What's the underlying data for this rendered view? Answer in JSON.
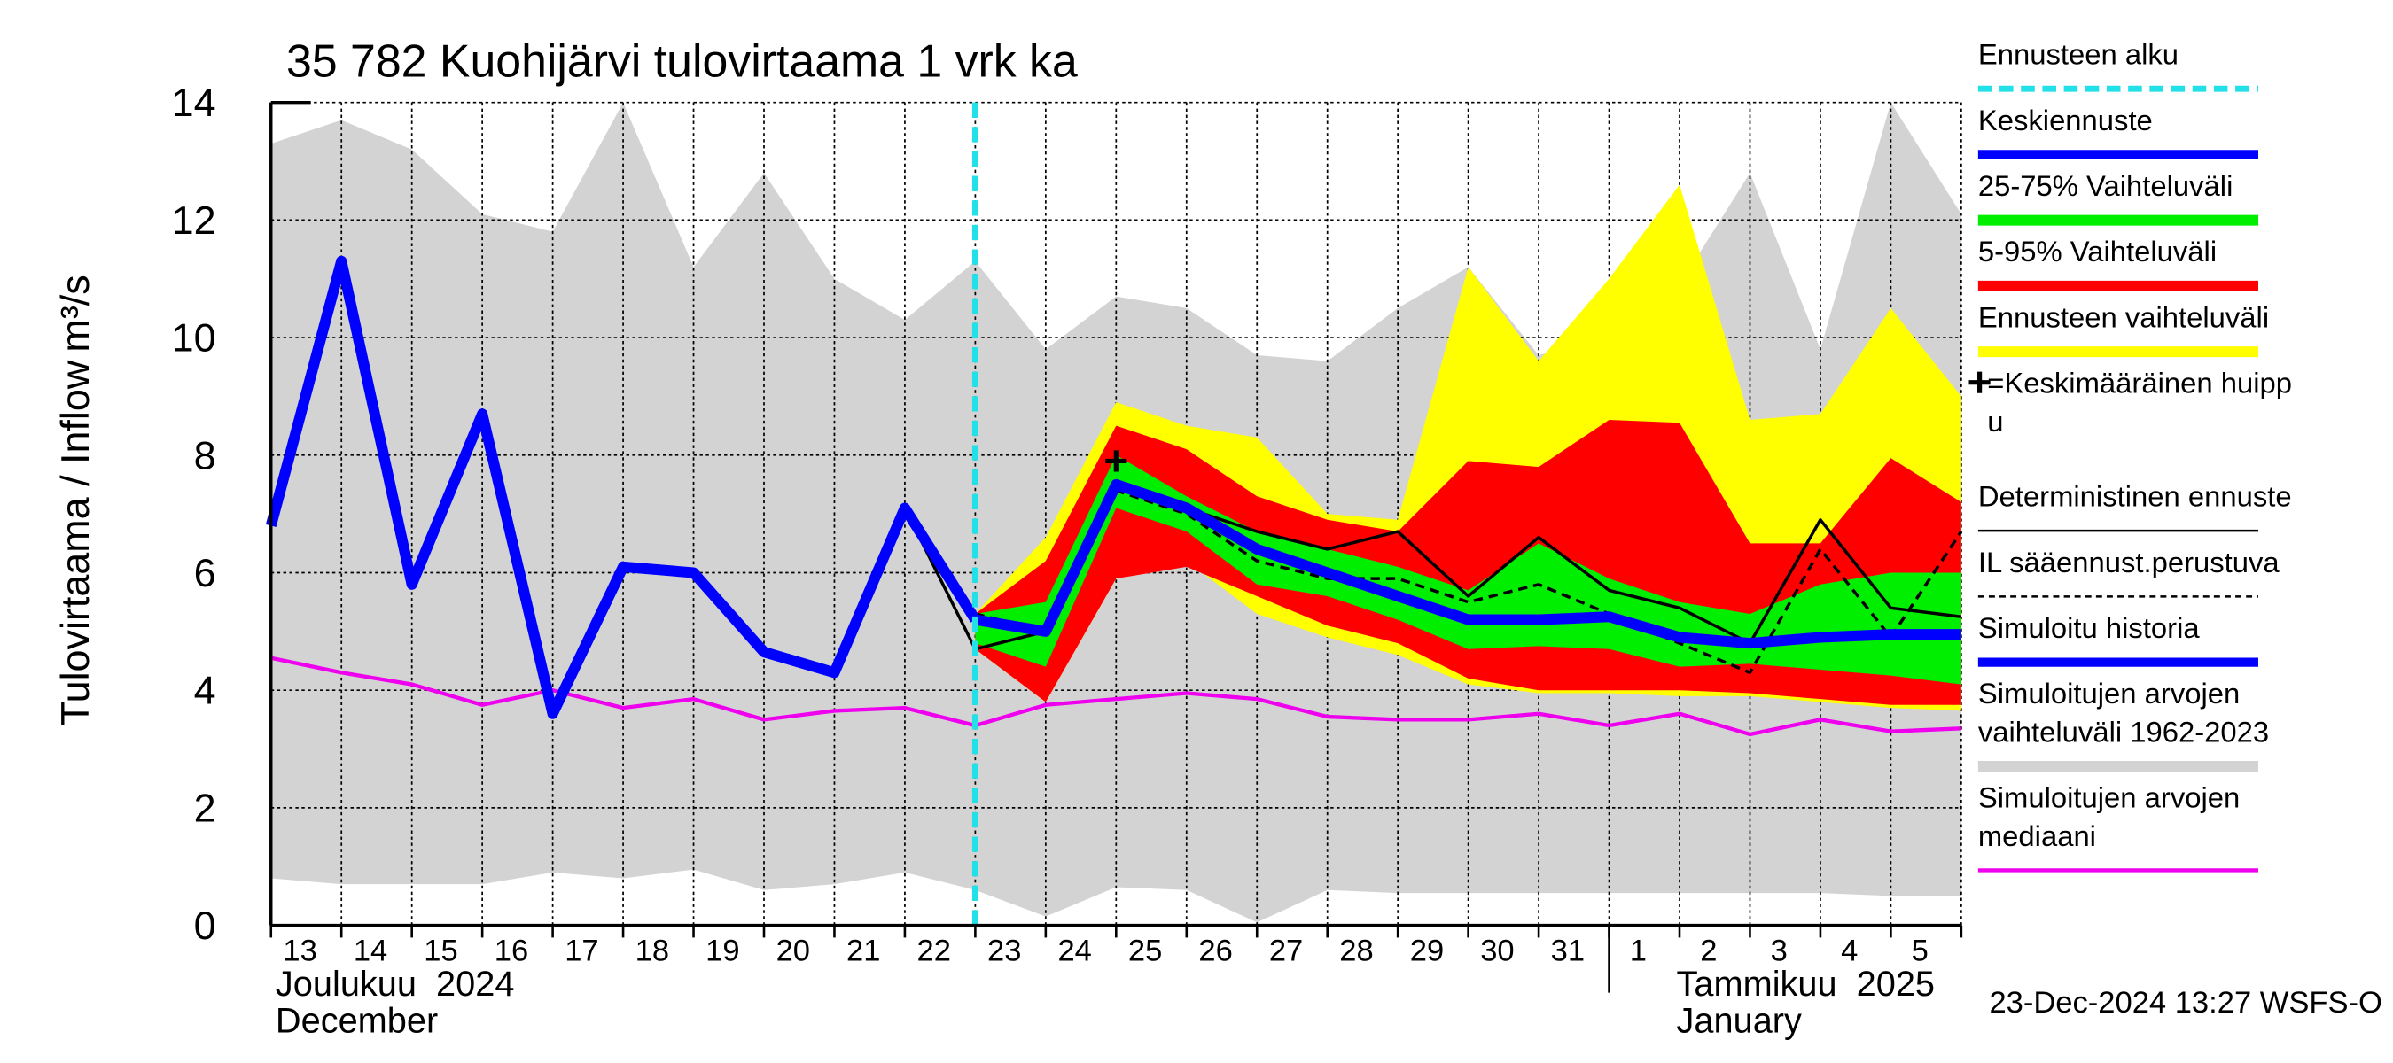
{
  "chart_data": {
    "type": "line",
    "title": "35 782 Kuohijärvi tulovirtaama 1 vrk ka",
    "y_label": "Tulovirtaama / Inflow",
    "y_unit": "m³/s",
    "categories": [
      "13",
      "14",
      "15",
      "16",
      "17",
      "18",
      "19",
      "20",
      "21",
      "22",
      "23",
      "24",
      "25",
      "26",
      "27",
      "28",
      "29",
      "30",
      "31",
      "1",
      "2",
      "3",
      "4",
      "5",
      null
    ],
    "month_labels": [
      {
        "category": "13",
        "lines": [
          "Joulukuu  2024",
          "December"
        ]
      },
      {
        "category": "1",
        "lines": [
          "Tammikuu  2025",
          "January"
        ]
      }
    ],
    "forecast_start": "23",
    "timestamp": "23-Dec-2024 13:27 WSFS-O",
    "ylim": [
      0,
      14
    ],
    "yticks": [
      0,
      2,
      4,
      6,
      8,
      10,
      12,
      14
    ],
    "grid": true,
    "series": [
      {
        "name": [
          "Ennusteen alku"
        ],
        "color": "#22e0e8",
        "style": "vline"
      },
      {
        "name": [
          "Keskiennuste"
        ],
        "color": "#0000ff",
        "style": "thick",
        "values": [
          null,
          null,
          null,
          null,
          null,
          null,
          null,
          null,
          null,
          null,
          5.2,
          5.0,
          7.5,
          7.1,
          6.4,
          6.0,
          5.6,
          5.2,
          5.2,
          5.25,
          4.9,
          4.8,
          4.9,
          4.95,
          4.95
        ]
      },
      {
        "name": [
          "25-75% Vaihteluväli"
        ],
        "color": "#00ee00",
        "style": "band",
        "values": [
          null,
          null,
          null,
          null,
          null,
          null,
          null,
          null,
          null,
          null,
          5.3,
          5.5,
          8.0,
          7.3,
          6.7,
          6.4,
          6.1,
          5.7,
          6.5,
          5.9,
          5.5,
          5.3,
          5.8,
          6.0,
          6.0
        ],
        "lower": [
          null,
          null,
          null,
          null,
          null,
          null,
          null,
          null,
          null,
          null,
          4.8,
          4.4,
          7.1,
          6.7,
          5.8,
          5.6,
          5.2,
          4.7,
          4.75,
          4.7,
          4.4,
          4.45,
          4.35,
          4.25,
          4.1
        ]
      },
      {
        "name": [
          "5-95% Vaihteluväli"
        ],
        "color": "#ff0000",
        "style": "band",
        "values": [
          null,
          null,
          null,
          null,
          null,
          null,
          null,
          null,
          null,
          null,
          5.3,
          6.2,
          8.5,
          8.1,
          7.3,
          6.9,
          6.7,
          7.9,
          7.8,
          8.6,
          8.55,
          6.5,
          6.5,
          7.95,
          7.2
        ],
        "lower": [
          null,
          null,
          null,
          null,
          null,
          null,
          null,
          null,
          null,
          null,
          4.7,
          3.8,
          5.9,
          6.1,
          5.6,
          5.1,
          4.8,
          4.2,
          4.0,
          4.0,
          4.0,
          3.95,
          3.85,
          3.75,
          3.75
        ]
      },
      {
        "name": [
          "Ennusteen vaihteluväli"
        ],
        "color": "#ffff00",
        "style": "band",
        "values": [
          null,
          null,
          null,
          null,
          null,
          null,
          null,
          null,
          null,
          null,
          5.3,
          6.6,
          8.9,
          8.5,
          8.3,
          7.0,
          6.9,
          11.2,
          9.6,
          11.0,
          12.6,
          8.6,
          8.7,
          10.5,
          9.0
        ],
        "lower": [
          null,
          null,
          null,
          null,
          null,
          null,
          null,
          null,
          null,
          null,
          4.7,
          3.8,
          5.9,
          6.2,
          5.3,
          4.9,
          4.6,
          4.1,
          3.95,
          3.95,
          3.9,
          3.9,
          3.8,
          3.7,
          3.65
        ]
      },
      {
        "name": [
          "=Keskimääräinen huipp",
          "u"
        ],
        "color": "#000000",
        "style": "marker",
        "values": [
          null,
          null,
          null,
          null,
          null,
          null,
          null,
          null,
          null,
          null,
          null,
          null,
          7.9,
          null,
          null,
          null,
          null,
          null,
          null,
          null,
          null,
          null,
          null,
          null,
          null
        ]
      },
      {
        "name": [
          "Deterministinen ennuste"
        ],
        "color": "#000000",
        "style": "thin",
        "values": [
          null,
          null,
          null,
          null,
          null,
          null,
          null,
          null,
          null,
          7.1,
          4.7,
          5.0,
          7.5,
          7.1,
          6.7,
          6.4,
          6.7,
          5.6,
          6.6,
          5.7,
          5.4,
          4.8,
          6.9,
          5.4,
          5.25
        ]
      },
      {
        "name": [
          "IL sääennust.perustuva"
        ],
        "color": "#000000",
        "style": "dashed",
        "values": [
          null,
          null,
          null,
          null,
          null,
          null,
          null,
          null,
          null,
          null,
          5.3,
          5.0,
          7.4,
          7.0,
          6.2,
          5.9,
          5.9,
          5.5,
          5.8,
          5.3,
          4.8,
          4.3,
          6.4,
          4.9,
          6.7
        ]
      },
      {
        "name": [
          "Simuloitu historia"
        ],
        "color": "#0000ff",
        "style": "thick",
        "values": [
          6.8,
          11.3,
          5.8,
          8.7,
          3.6,
          6.1,
          6.0,
          4.65,
          4.3,
          7.1,
          5.2,
          null,
          null,
          null,
          null,
          null,
          null,
          null,
          null,
          null,
          null,
          null,
          null,
          null,
          null
        ]
      },
      {
        "name": [
          "Simuloitujen arvojen",
          "vaihteluväli 1962-2023"
        ],
        "color": "#d3d3d3",
        "style": "band",
        "values": [
          13.3,
          13.7,
          13.2,
          12.1,
          11.8,
          14.0,
          11.2,
          12.8,
          11.0,
          10.3,
          11.3,
          9.8,
          10.7,
          10.5,
          9.7,
          9.6,
          10.5,
          11.2,
          9.7,
          10.0,
          10.9,
          12.8,
          9.8,
          14.0,
          12.1
        ],
        "lower": [
          0.8,
          0.7,
          0.7,
          0.7,
          0.9,
          0.8,
          0.95,
          0.6,
          0.7,
          0.9,
          0.6,
          0.15,
          0.65,
          0.6,
          0.05,
          0.6,
          0.55,
          0.55,
          0.55,
          0.55,
          0.55,
          0.55,
          0.55,
          0.5,
          0.5
        ]
      },
      {
        "name": [
          "Simuloitujen arvojen",
          "mediaani"
        ],
        "color": "#ee00ee",
        "style": "median",
        "values": [
          4.55,
          4.3,
          4.1,
          3.75,
          4.0,
          3.7,
          3.85,
          3.5,
          3.65,
          3.7,
          3.4,
          3.75,
          3.85,
          3.95,
          3.85,
          3.55,
          3.5,
          3.5,
          3.6,
          3.4,
          3.6,
          3.25,
          3.5,
          3.3,
          3.35
        ]
      }
    ]
  }
}
